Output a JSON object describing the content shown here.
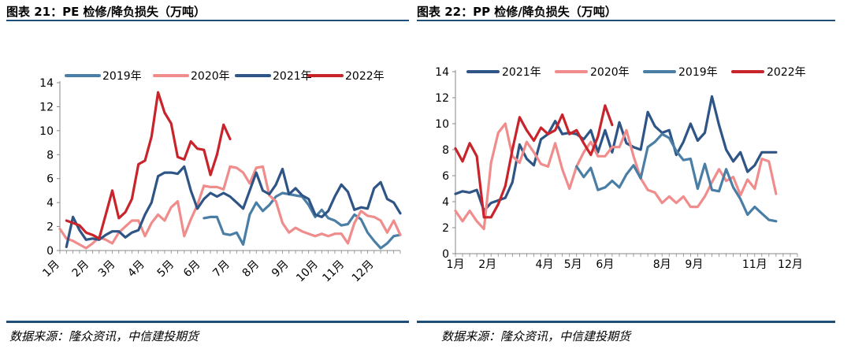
{
  "left": {
    "title": "图表 21：PE 检修/降负损失（万吨）",
    "source": "数据来源：隆众资讯，中信建投期货"
  },
  "right": {
    "title": "图表 22：PP 检修/降负损失（万吨）",
    "source": "数据来源：隆众资讯，中信建投期货"
  },
  "chart_data": [
    {
      "type": "line",
      "title": "PE 检修/降负损失（万吨）",
      "ylim": [
        0,
        14
      ],
      "yticks": [
        0,
        2,
        4,
        6,
        8,
        10,
        12,
        14
      ],
      "x_range": [
        0,
        52
      ],
      "xticks": [
        {
          "label": "1月",
          "week": 0
        },
        {
          "label": "2月",
          "week": 4.5
        },
        {
          "label": "3月",
          "week": 8.5
        },
        {
          "label": "4月",
          "week": 13
        },
        {
          "label": "5月",
          "week": 17.5
        },
        {
          "label": "6月",
          "week": 21.5
        },
        {
          "label": "7月",
          "week": 26
        },
        {
          "label": "8月",
          "week": 30.5
        },
        {
          "label": "9月",
          "week": 35
        },
        {
          "label": "10月",
          "week": 39.5
        },
        {
          "label": "11月",
          "week": 43.5
        },
        {
          "label": "12月",
          "week": 48
        }
      ],
      "legend": [
        "2019年",
        "2020年",
        "2021年",
        "2022年"
      ],
      "series": [
        {
          "name": "2019年",
          "color": "#4a7ea4",
          "x_start": 22,
          "values": [
            2.7,
            2.8,
            2.8,
            1.4,
            1.3,
            1.5,
            0.5,
            3.0,
            4.0,
            3.3,
            3.8,
            4.5,
            4.8,
            4.7,
            4.6,
            4.5,
            3.8,
            2.8,
            3.4,
            2.7,
            2.5,
            2.1,
            2.2,
            3.0,
            2.6,
            1.5,
            0.8,
            0.2,
            0.6,
            1.2,
            1.3
          ]
        },
        {
          "name": "2020年",
          "color": "#f08c8c",
          "x_start": 0,
          "values": [
            1.8,
            1.0,
            0.8,
            0.5,
            0.2,
            0.6,
            1.1,
            0.9,
            0.6,
            1.5,
            2.0,
            2.5,
            2.5,
            1.2,
            2.3,
            3.0,
            2.5,
            3.6,
            4.1,
            1.2,
            2.6,
            3.8,
            5.4,
            5.3,
            5.3,
            5.1,
            7.0,
            6.9,
            6.5,
            5.6,
            6.9,
            7.0,
            4.6,
            4.1,
            2.3,
            1.5,
            1.9,
            1.6,
            1.4,
            1.2,
            1.4,
            1.2,
            1.4,
            1.4,
            0.6,
            2.3,
            3.3,
            2.9,
            2.8,
            2.5,
            1.5,
            2.5,
            1.3
          ]
        },
        {
          "name": "2021年",
          "color": "#2e5585",
          "x_start": 1,
          "values": [
            0.3,
            2.8,
            1.7,
            0.9,
            1.0,
            0.9,
            1.3,
            1.6,
            1.6,
            1.1,
            1.5,
            1.7,
            3.0,
            4.0,
            6.2,
            6.5,
            6.5,
            6.4,
            7.0,
            5.0,
            3.5,
            4.3,
            4.8,
            4.5,
            4.8,
            4.5,
            4.0,
            3.5,
            5.0,
            6.5,
            5.0,
            4.7,
            5.5,
            6.8,
            4.7,
            5.2,
            4.6,
            4.3,
            3.0,
            2.8,
            3.3,
            4.5,
            5.5,
            4.9,
            3.4,
            3.6,
            3.5,
            5.2,
            5.7,
            4.3,
            4.0,
            3.1
          ]
        },
        {
          "name": "2022年",
          "color": "#c8242b",
          "x_start": 1,
          "values": [
            2.5,
            2.3,
            2.1,
            1.5,
            1.3,
            1.0,
            3.0,
            5.0,
            2.7,
            3.2,
            4.3,
            7.2,
            7.5,
            9.5,
            13.2,
            11.5,
            10.6,
            7.8,
            7.6,
            9.1,
            8.5,
            8.4,
            6.3,
            8.0,
            10.5,
            9.3
          ]
        }
      ]
    },
    {
      "type": "line",
      "title": "PP 检修/降负损失（万吨）",
      "ylim": [
        0,
        14
      ],
      "yticks": [
        0,
        2,
        4,
        6,
        8,
        10,
        12,
        14
      ],
      "x_range": [
        0,
        48
      ],
      "xticks": [
        {
          "label": "1月",
          "week": 0
        },
        {
          "label": "2月",
          "week": 4.5
        },
        {
          "label": "4月",
          "week": 12.5
        },
        {
          "label": "5月",
          "week": 16.5
        },
        {
          "label": "6月",
          "week": 21
        },
        {
          "label": "8月",
          "week": 29
        },
        {
          "label": "9月",
          "week": 33.5
        },
        {
          "label": "11月",
          "week": 42
        },
        {
          "label": "12月",
          "week": 47
        }
      ],
      "legend": [
        "2021年",
        "2020年",
        "2019年",
        "2022年"
      ],
      "series": [
        {
          "name": "2021年",
          "color": "#2e5585",
          "x_start": 0,
          "values": [
            4.6,
            4.8,
            4.7,
            4.9,
            3.3,
            3.9,
            4.1,
            4.3,
            5.5,
            8.4,
            7.3,
            6.8,
            8.8,
            9.2,
            10.2,
            9.2,
            9.3,
            9.2,
            8.8,
            9.5,
            7.8,
            9.5,
            7.8,
            10.1,
            8.5,
            8.2,
            8.0,
            10.9,
            9.8,
            9.3,
            9.5,
            7.6,
            8.6,
            10.0,
            8.7,
            9.3,
            12.1,
            9.9,
            8.0,
            7.1,
            7.8,
            6.3,
            6.8,
            7.8,
            7.8,
            7.8
          ]
        },
        {
          "name": "2020年",
          "color": "#f08c8c",
          "x_start": 0,
          "values": [
            3.3,
            2.5,
            3.3,
            2.5,
            1.9,
            7.0,
            9.3,
            10.0,
            7.5,
            7.0,
            8.6,
            7.8,
            6.9,
            6.7,
            8.5,
            6.5,
            5.0,
            6.7,
            7.8,
            8.6,
            7.5,
            7.5,
            8.2,
            8.2,
            9.5,
            7.5,
            5.8,
            4.9,
            4.7,
            3.9,
            4.4,
            3.9,
            4.4,
            3.6,
            3.6,
            4.4,
            5.5,
            6.5,
            5.6,
            5.9,
            4.5,
            5.7,
            5.0,
            7.3,
            7.1,
            4.6
          ]
        },
        {
          "name": "2019年",
          "color": "#4a7ea4",
          "x_start": 17,
          "values": [
            6.7,
            5.9,
            6.6,
            4.9,
            5.1,
            5.6,
            5.1,
            6.1,
            6.8,
            5.8,
            8.2,
            8.6,
            9.2,
            8.9,
            7.9,
            7.2,
            7.3,
            5.0,
            6.9,
            4.9,
            4.8,
            6.5,
            5.1,
            4.2,
            3.0,
            3.6,
            3.1,
            2.6,
            2.5
          ]
        },
        {
          "name": "2022年",
          "color": "#c8242b",
          "x_start": 0,
          "values": [
            8.1,
            7.1,
            8.5,
            7.5,
            2.8,
            2.8,
            3.8,
            5.2,
            8.0,
            10.5,
            9.5,
            8.7,
            9.7,
            9.2,
            9.5,
            10.7,
            9.2,
            9.5,
            8.5,
            7.6,
            9.0,
            11.4,
            9.9
          ]
        }
      ]
    }
  ]
}
